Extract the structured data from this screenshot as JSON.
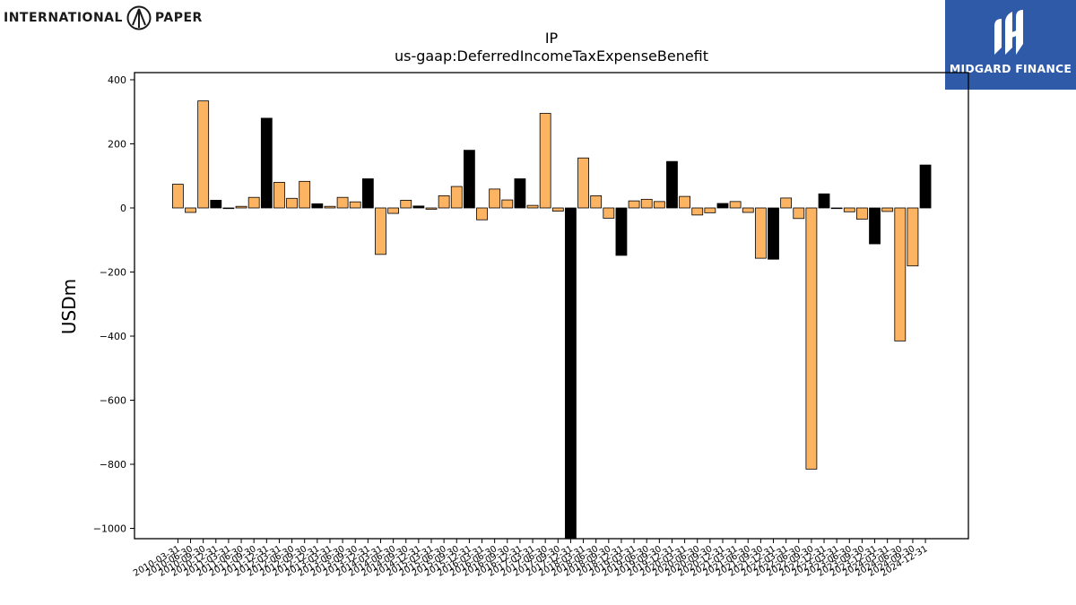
{
  "brand_left": {
    "text_left": "INTERNATIONAL",
    "text_right": "PAPER",
    "icon": "international-paper-logo-icon"
  },
  "brand_right": {
    "text": "MIDGARD FINANCE",
    "icon": "midgard-logo-icon",
    "color": "#2f5aa8"
  },
  "chart_data": {
    "type": "bar",
    "title": "IP",
    "subtitle": "us-gaap:DeferredIncomeTaxExpenseBenefit",
    "ylabel": "USDm",
    "xlabel": "",
    "ylim": [
      -1030,
      400
    ],
    "yticks": [
      400,
      200,
      0,
      -200,
      -400,
      -600,
      -800,
      -1000
    ],
    "ytick_labels": [
      "400",
      "200",
      "0",
      "−200",
      "−400",
      "−600",
      "−800",
      "−1000"
    ],
    "colors": {
      "quarterly": "#fdb462",
      "annual": "#000000",
      "edge": "#000000"
    },
    "categories": [
      "2010-03-31",
      "2010-06-30",
      "2010-09-30",
      "2010-12-31",
      "2011-03-31",
      "2011-06-30",
      "2011-09-30",
      "2011-12-31",
      "2012-03-31",
      "2012-06-30",
      "2012-09-30",
      "2012-12-31",
      "2013-03-31",
      "2013-06-30",
      "2013-09-30",
      "2013-12-31",
      "2014-03-31",
      "2014-06-30",
      "2014-09-30",
      "2014-12-31",
      "2015-03-31",
      "2015-06-30",
      "2015-09-30",
      "2015-12-31",
      "2016-03-31",
      "2016-06-30",
      "2016-09-30",
      "2016-12-31",
      "2017-03-31",
      "2017-06-30",
      "2017-09-30",
      "2017-12-31",
      "2018-03-31",
      "2018-06-30",
      "2018-09-30",
      "2018-12-31",
      "2019-03-31",
      "2019-06-30",
      "2019-09-30",
      "2019-12-31",
      "2020-03-31",
      "2020-06-30",
      "2020-09-30",
      "2020-12-31",
      "2021-03-31",
      "2021-06-30",
      "2021-09-30",
      "2021-12-31",
      "2022-03-31",
      "2022-06-30",
      "2022-09-30",
      "2022-12-31",
      "2023-03-31",
      "2023-06-30",
      "2023-09-30",
      "2023-12-31",
      "2024-03-31",
      "2024-06-30",
      "2024-09-30",
      "2024-12-31"
    ],
    "values": [
      74,
      -14,
      334,
      24,
      -2,
      5,
      33,
      280,
      80,
      30,
      83,
      13,
      5,
      33,
      19,
      91,
      -145,
      -17,
      24,
      6,
      -4,
      38,
      67,
      180,
      -37,
      59,
      25,
      91,
      8,
      295,
      -10,
      -1030,
      156,
      38,
      -32,
      -148,
      22,
      27,
      20,
      145,
      36,
      -22,
      -15,
      14,
      20,
      -14,
      -157,
      -160,
      31,
      -33,
      -815,
      44,
      -2,
      -12,
      -35,
      -112,
      -11,
      -415,
      -181,
      134
    ],
    "annual_flags": [
      false,
      false,
      false,
      true,
      false,
      false,
      false,
      true,
      false,
      false,
      false,
      true,
      false,
      false,
      false,
      true,
      false,
      false,
      false,
      true,
      false,
      false,
      false,
      true,
      false,
      false,
      false,
      true,
      false,
      false,
      false,
      true,
      false,
      false,
      false,
      true,
      false,
      false,
      false,
      true,
      false,
      false,
      false,
      true,
      false,
      false,
      false,
      true,
      false,
      false,
      false,
      true,
      false,
      false,
      false,
      true,
      false,
      false,
      false,
      true
    ]
  }
}
